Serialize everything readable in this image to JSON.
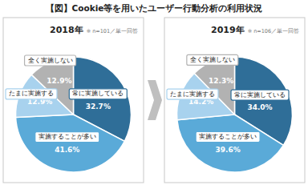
{
  "title": "【図】Cookie等を用いたユーザー行動分析の利用状況",
  "chart_data": [
    {
      "type": "pie",
      "title": "2018年",
      "subtitle": "※ n=101／単一回答",
      "categories": [
        "常に実施している",
        "実施することが多い",
        "たまに実施する",
        "全く実施しない"
      ],
      "values": [
        32.7,
        41.6,
        12.9,
        12.9
      ],
      "value_labels": [
        "32.7%",
        "41.6%",
        "12.9%",
        "12.9%"
      ],
      "colors": [
        "#2f6e98",
        "#5aaad8",
        "#a8d2ee",
        "#b2b2b2"
      ],
      "data_labels": true
    },
    {
      "type": "pie",
      "title": "2019年",
      "subtitle": "※ n=106／単一回答",
      "categories": [
        "常に実施している",
        "実施することが多い",
        "たまに実施する",
        "全く実施しない"
      ],
      "values": [
        34.0,
        39.6,
        14.2,
        12.3
      ],
      "value_labels": [
        "34.0%",
        "39.6%",
        "14.2%",
        "12.3%"
      ],
      "colors": [
        "#2f6e98",
        "#5aaad8",
        "#a8d2ee",
        "#b2b2b2"
      ],
      "data_labels": true
    }
  ]
}
